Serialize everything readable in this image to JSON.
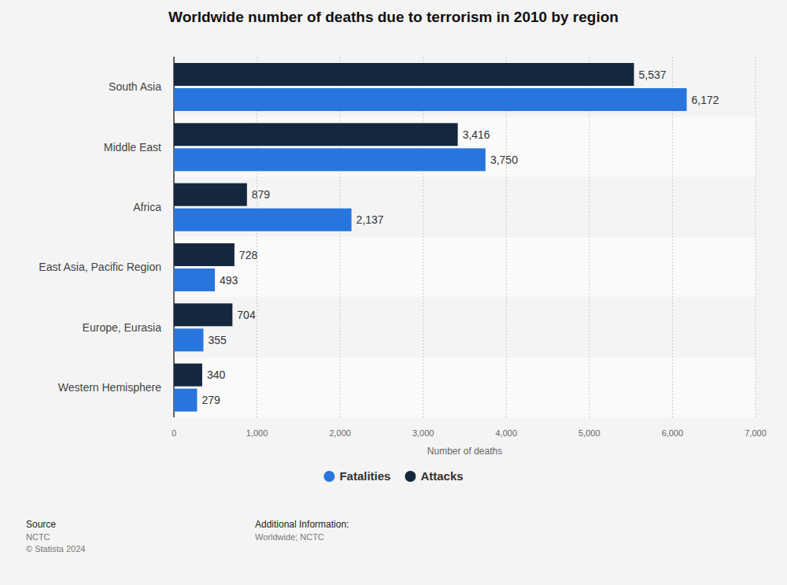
{
  "chart_data": {
    "type": "bar",
    "orientation": "horizontal",
    "title": "Worldwide number of deaths due to terrorism in 2010 by region",
    "categories": [
      "South Asia",
      "Middle East",
      "Africa",
      "East Asia, Pacific Region",
      "Europe, Eurasia",
      "Western Hemisphere"
    ],
    "series": [
      {
        "name": "Fatalities",
        "color": "#2876dd",
        "values": [
          6172,
          3750,
          2137,
          493,
          355,
          279
        ],
        "value_labels": [
          "6,172",
          "3,750",
          "2,137",
          "493",
          "355",
          "279"
        ]
      },
      {
        "name": "Attacks",
        "color": "#14273e",
        "values": [
          5537,
          3416,
          879,
          728,
          704,
          340
        ],
        "value_labels": [
          "5,537",
          "3,416",
          "879",
          "728",
          "704",
          "340"
        ]
      }
    ],
    "xlabel": "Number of deaths",
    "xlim": [
      0,
      7000
    ],
    "xticks": [
      0,
      {
        "value": 1000,
        "label": "1,000"
      },
      {
        "value": 2000,
        "label": "2,000"
      },
      {
        "value": 3000,
        "label": "3,000"
      },
      {
        "value": 4000,
        "label": "4,000"
      },
      {
        "value": 5000,
        "label": "5,000"
      },
      {
        "value": 6000,
        "label": "6,000"
      },
      {
        "value": 7000,
        "label": "7,000"
      }
    ],
    "grid": true,
    "data_labels": true,
    "legend": "bottom",
    "annotations": [
      "Source",
      "NCTC",
      "© Statista 2024",
      "Additional Information:",
      "Worldwide; NCTC"
    ]
  }
}
